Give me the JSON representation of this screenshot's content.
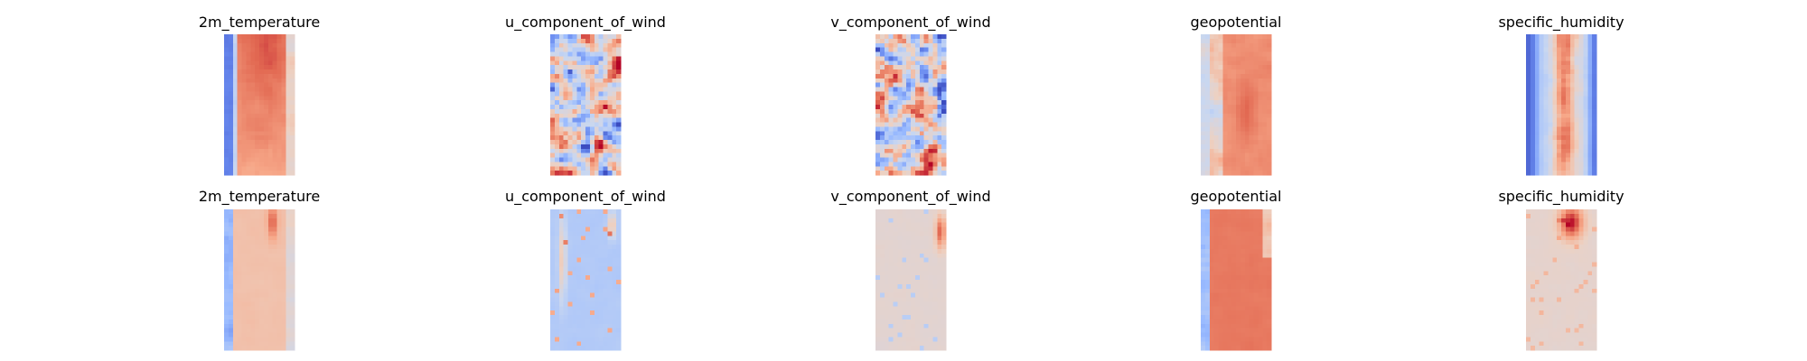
{
  "chart_data": {
    "type": "heatmap",
    "colormap": "coolwarm",
    "colormap_stops": [
      "#3b4cc0",
      "#6788ee",
      "#9abbff",
      "#c9d7f0",
      "#edd1c2",
      "#f7a889",
      "#e26952",
      "#b40426"
    ],
    "axes_visible": false,
    "rows": [
      {
        "panels": [
          {
            "title": "2m_temperature",
            "variable": "2m_temperature",
            "pattern": "temperature_field"
          },
          {
            "title": "u_component_of_wind",
            "variable": "u_component_of_wind",
            "pattern": "wind_noise"
          },
          {
            "title": "v_component_of_wind",
            "variable": "v_component_of_wind",
            "pattern": "wind_noise_v"
          },
          {
            "title": "geopotential",
            "variable": "geopotential",
            "pattern": "geopotential_field"
          },
          {
            "title": "specific_humidity",
            "variable": "specific_humidity",
            "pattern": "humidity_field"
          }
        ]
      },
      {
        "panels": [
          {
            "title": "2m_temperature",
            "variable": "2m_temperature",
            "pattern": "temperature_flat"
          },
          {
            "title": "u_component_of_wind",
            "variable": "u_component_of_wind",
            "pattern": "near_zero_u"
          },
          {
            "title": "v_component_of_wind",
            "variable": "v_component_of_wind",
            "pattern": "near_zero_v"
          },
          {
            "title": "geopotential",
            "variable": "geopotential",
            "pattern": "geopotential_flat"
          },
          {
            "title": "specific_humidity",
            "variable": "specific_humidity",
            "pattern": "humidity_flat"
          }
        ]
      }
    ]
  }
}
